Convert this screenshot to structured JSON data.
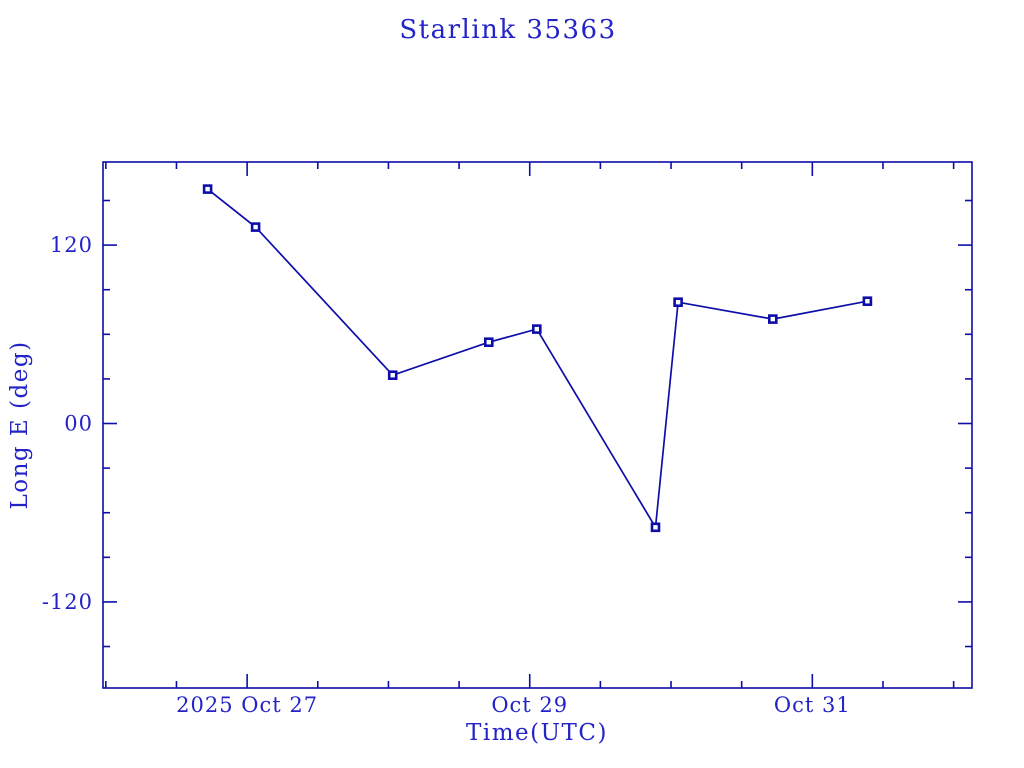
{
  "page": {
    "background_color": "#ffffff"
  },
  "chart_data": {
    "type": "line",
    "title": "Starlink 35363",
    "xlabel": "Time(UTC)",
    "ylabel": "Long E (deg)",
    "x_unit": "fractional day of October 2025 (UTC)",
    "x": [
      26.72,
      27.06,
      28.03,
      28.71,
      29.05,
      29.89,
      30.05,
      30.72,
      31.39
    ],
    "y": [
      157.7,
      132.1,
      32.5,
      54.7,
      63.5,
      -69.8,
      81.6,
      70.2,
      82.3
    ],
    "series_name": "Long E (deg)",
    "xlim": [
      25.98,
      32.13
    ],
    "ylim": [
      -177.9,
      175.9
    ],
    "x_major_ticks": [
      {
        "value": 27,
        "label": "2025 Oct 27"
      },
      {
        "value": 29,
        "label": "Oct 29"
      },
      {
        "value": 31,
        "label": "Oct 31"
      }
    ],
    "x_minor_tick_step": 0.5,
    "y_major_ticks": [
      {
        "value": 120,
        "label": "120"
      },
      {
        "value": 0,
        "label": "00"
      },
      {
        "value": -120,
        "label": "-120"
      }
    ],
    "y_minor_tick_step": 30,
    "grid": false,
    "legend": null,
    "marker": "filled-square-open-center",
    "frame": "box-with-inward-ticks-all-sides",
    "colors": {
      "line": "#0d0daa",
      "marker": "#0d0daa",
      "marker_center": "#ffffff",
      "frame": "#0d0daa",
      "text": "#2323c8",
      "background": "#ffffff"
    }
  }
}
